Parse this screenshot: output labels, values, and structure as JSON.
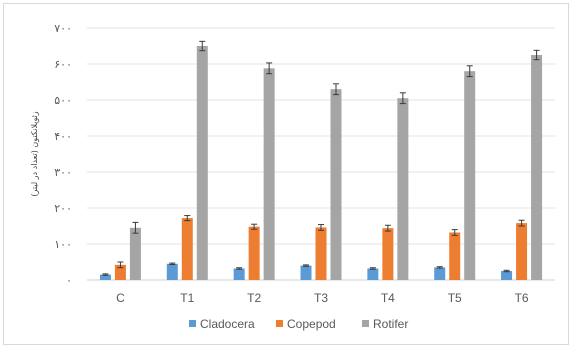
{
  "chart_data": {
    "type": "bar",
    "categories": [
      "C",
      "T1",
      "T2",
      "T3",
      "T4",
      "T5",
      "T6"
    ],
    "series": [
      {
        "name": "Cladocera",
        "color": "#5b9bd5",
        "values": [
          15,
          45,
          32,
          40,
          32,
          35,
          25
        ],
        "errors": [
          2,
          2,
          2,
          2,
          2,
          2,
          2
        ]
      },
      {
        "name": "Copepod",
        "color": "#ed7d31",
        "values": [
          42,
          172,
          148,
          146,
          144,
          132,
          158
        ],
        "errors": [
          8,
          7,
          7,
          8,
          8,
          8,
          8
        ]
      },
      {
        "name": "Rotifer",
        "color": "#a5a5a5",
        "values": [
          145,
          650,
          588,
          530,
          505,
          580,
          625
        ],
        "errors": [
          15,
          13,
          15,
          15,
          15,
          15,
          13
        ]
      }
    ],
    "ylim": [
      0,
      700
    ],
    "yticks": [
      0,
      100,
      200,
      300,
      400,
      500,
      600,
      700
    ],
    "ytick_labels": [
      "۰",
      "۱۰۰",
      "۲۰۰",
      "۳۰۰",
      "۴۰۰",
      "۵۰۰",
      "۶۰۰",
      "۷۰۰"
    ],
    "ylabel": "زئوپلانکتون (تعداد در لیتر)",
    "xlabel": "",
    "title": "",
    "grid": true,
    "legend": "bottom"
  }
}
